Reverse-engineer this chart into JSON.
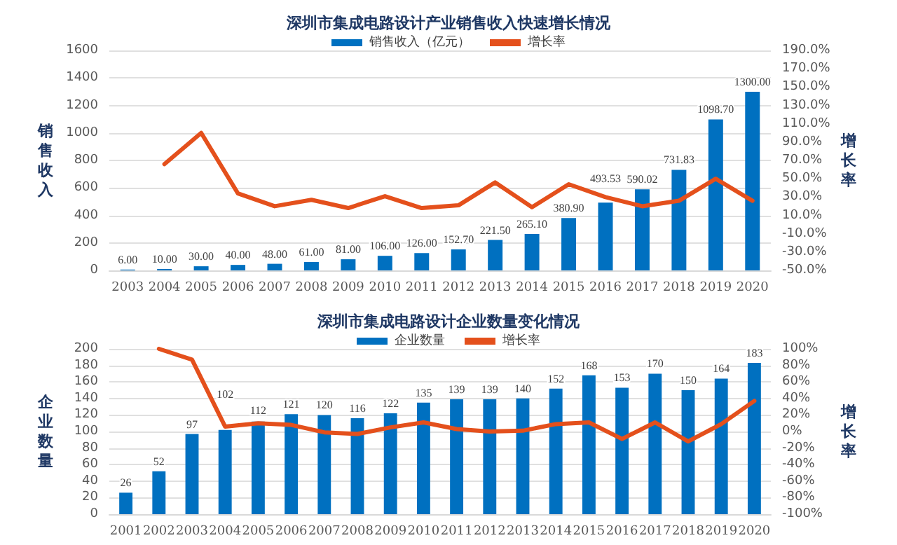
{
  "chart_data": [
    {
      "type": "bar",
      "title": "深圳市集成电路设计产业销售收入快速增长情况",
      "ylabel": "销售收入",
      "y2label": "增长率",
      "categories": [
        "2003",
        "2004",
        "2005",
        "2006",
        "2007",
        "2008",
        "2009",
        "2010",
        "2011",
        "2012",
        "2013",
        "2014",
        "2015",
        "2016",
        "2017",
        "2018",
        "2019",
        "2020"
      ],
      "series": [
        {
          "name": "销售收入（亿元）",
          "color": "#0070c0",
          "values": [
            6,
            10,
            30,
            40,
            48,
            61,
            81,
            106,
            126,
            152.7,
            221.5,
            265.1,
            380.9,
            493.53,
            590.02,
            731.83,
            1098.7,
            1300
          ],
          "value_labels": [
            "6.00",
            "10.00",
            "30.00",
            "40.00",
            "48.00",
            "61.00",
            "81.00",
            "106.00",
            "126.00",
            "152.70",
            "221.50",
            "265.10",
            "380.90",
            "493.53",
            "590.02",
            "731.83",
            "1098.70",
            "1300.00"
          ]
        },
        {
          "name": "增长率",
          "type": "line",
          "axis": "y2",
          "color": "#e4501c",
          "values": [
            null,
            66,
            100,
            34,
            20,
            27,
            18,
            31,
            18,
            21,
            46,
            19,
            44,
            30,
            20,
            26,
            50,
            26
          ]
        }
      ],
      "ylim": [
        0,
        1600
      ],
      "yticks": [
        0,
        200,
        400,
        600,
        800,
        1000,
        1200,
        1400,
        1600
      ],
      "y2lim": [
        -50,
        190
      ],
      "y2ticks": [
        {
          "value": -50,
          "label": "-50.0%"
        },
        {
          "value": -30,
          "label": "-30.0%"
        },
        {
          "value": -10,
          "label": "-10.0%"
        },
        {
          "value": 10,
          "label": "10.0%"
        },
        {
          "value": 30,
          "label": "30.0%"
        },
        {
          "value": 50,
          "label": "50.0%"
        },
        {
          "value": 70,
          "label": "70.0%"
        },
        {
          "value": 90,
          "label": "90.0%"
        },
        {
          "value": 110,
          "label": "110.0%"
        },
        {
          "value": 130,
          "label": "130.0%"
        },
        {
          "value": 150,
          "label": "150.0%"
        },
        {
          "value": 170,
          "label": "170.0%"
        },
        {
          "value": 190,
          "label": "190.0%"
        }
      ],
      "grid": "y",
      "legend": "top",
      "marker": "none"
    },
    {
      "type": "bar",
      "title": "深圳市集成电路设计企业数量变化情况",
      "ylabel": "企业数量",
      "y2label": "增长率",
      "categories": [
        "2001",
        "2002",
        "2003",
        "2004",
        "2005",
        "2006",
        "2007",
        "2008",
        "2009",
        "2010",
        "2011",
        "2012",
        "2013",
        "2014",
        "2015",
        "2016",
        "2017",
        "2018",
        "2019",
        "2020"
      ],
      "series": [
        {
          "name": "企业数量",
          "color": "#0070c0",
          "values": [
            26,
            52,
            97,
            102,
            112,
            121,
            120,
            116,
            122,
            135,
            139,
            139,
            140,
            152,
            168,
            153,
            170,
            150,
            164,
            183
          ],
          "value_labels": [
            "26",
            "52",
            "97",
            "102",
            "112",
            "121",
            "120",
            "116",
            "122",
            "135",
            "139",
            "139",
            "140",
            "152",
            "168",
            "153",
            "170",
            "150",
            "164",
            "183"
          ]
        },
        {
          "name": "增长率",
          "type": "line",
          "axis": "y2",
          "color": "#e4501c",
          "values": [
            null,
            100,
            87,
            6,
            10,
            8,
            -1,
            -3,
            5,
            11,
            3,
            0,
            1,
            9,
            11,
            -9,
            11,
            -12,
            9,
            37
          ]
        }
      ],
      "ylim": [
        0,
        200
      ],
      "yticks": [
        0,
        20,
        40,
        60,
        80,
        100,
        120,
        140,
        160,
        180,
        200
      ],
      "y2lim": [
        -100,
        100
      ],
      "y2ticks": [
        {
          "value": -100,
          "label": "-100%"
        },
        {
          "value": -80,
          "label": "-80%"
        },
        {
          "value": -60,
          "label": "-60%"
        },
        {
          "value": -40,
          "label": "-40%"
        },
        {
          "value": -20,
          "label": "-20%"
        },
        {
          "value": 0,
          "label": "0%"
        },
        {
          "value": 20,
          "label": "20%"
        },
        {
          "value": 40,
          "label": "40%"
        },
        {
          "value": 60,
          "label": "60%"
        },
        {
          "value": 80,
          "label": "80%"
        },
        {
          "value": 100,
          "label": "100%"
        }
      ],
      "grid": "y",
      "legend": "top",
      "marker": "none"
    }
  ]
}
